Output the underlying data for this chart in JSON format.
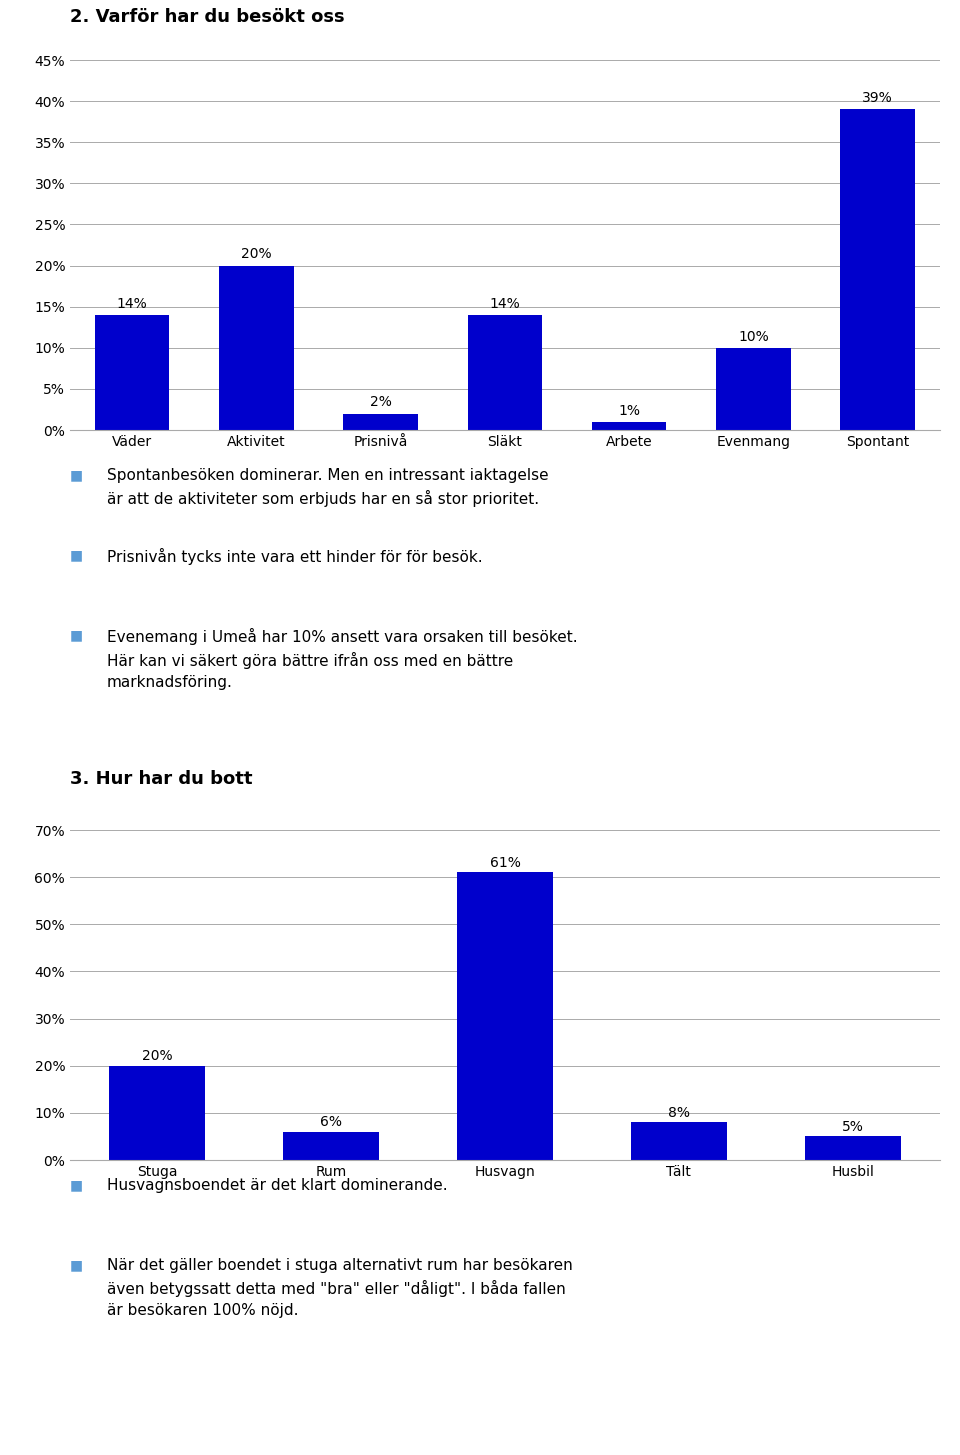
{
  "chart1_title": "2. Varför har du besökt oss",
  "chart1_categories": [
    "Väder",
    "Aktivitet",
    "Prisnivå",
    "Släkt",
    "Arbete",
    "Evenmang",
    "Spontant"
  ],
  "chart1_values": [
    14,
    20,
    2,
    14,
    1,
    10,
    39
  ],
  "chart1_bar_color": "#0000CC",
  "chart1_ylim": [
    0,
    45
  ],
  "chart1_yticks": [
    0,
    5,
    10,
    15,
    20,
    25,
    30,
    35,
    40,
    45
  ],
  "chart1_ytick_labels": [
    "0%",
    "5%",
    "10%",
    "15%",
    "20%",
    "25%",
    "30%",
    "35%",
    "40%",
    "45%"
  ],
  "chart2_title": "3. Hur har du bott",
  "chart2_categories": [
    "Stuga",
    "Rum",
    "Husvagn",
    "Tält",
    "Husbil"
  ],
  "chart2_values": [
    20,
    6,
    61,
    8,
    5
  ],
  "chart2_bar_color": "#0000CC",
  "chart2_ylim": [
    0,
    70
  ],
  "chart2_yticks": [
    0,
    10,
    20,
    30,
    40,
    50,
    60,
    70
  ],
  "chart2_ytick_labels": [
    "0%",
    "10%",
    "20%",
    "30%",
    "40%",
    "50%",
    "60%",
    "70%"
  ],
  "bullet_color": "#5B9BD5",
  "text_blocks_1": [
    "Spontanbesöken dominerar. Men en intressant iaktagelse\när att de aktiviteter som erbjuds har en så stor prioritet.",
    "Prisnivån tycks inte vara ett hinder för för besök.",
    "Evenemang i Umeå har 10% ansett vara orsaken till besöket.\nHär kan vi säkert göra bättre ifrån oss med en bättre\nmarknadsföring."
  ],
  "text_blocks_2": [
    "Husvagnsboendet är det klart dominerande.",
    "När det gäller boendet i stuga alternativt rum har besökaren\näven betygssatt detta med \"bra\" eller \"dåligt\". I båda fallen\när besökaren 100% nöjd."
  ],
  "bg_color": "#FFFFFF",
  "font_size_title": 13,
  "font_size_axis": 10,
  "font_size_label": 10,
  "font_size_text": 11
}
